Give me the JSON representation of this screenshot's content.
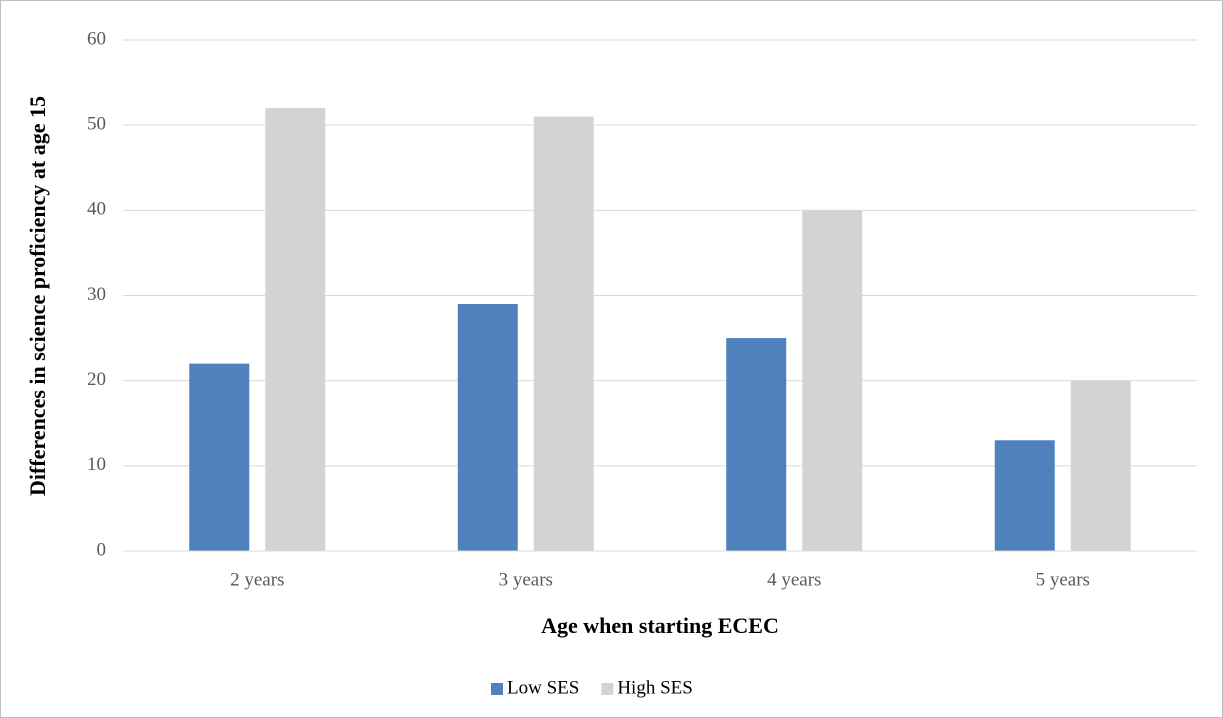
{
  "chart_data": {
    "type": "bar",
    "x_label": "Age when starting ECEC",
    "y_label": "Differences in science proficiency at age 15",
    "categories": [
      "2 years",
      "3 years",
      "4 years",
      "5 years"
    ],
    "series": [
      {
        "name": "Low SES",
        "color": "#4f81bd",
        "values": [
          22,
          29,
          25,
          13
        ]
      },
      {
        "name": "High SES",
        "color": "#d3d3d3",
        "values": [
          52,
          51,
          40,
          20
        ]
      }
    ],
    "ylim": [
      0,
      60
    ],
    "yticks": [
      0,
      10,
      20,
      30,
      40,
      50,
      60
    ],
    "grid": true,
    "legend": "bottom"
  }
}
